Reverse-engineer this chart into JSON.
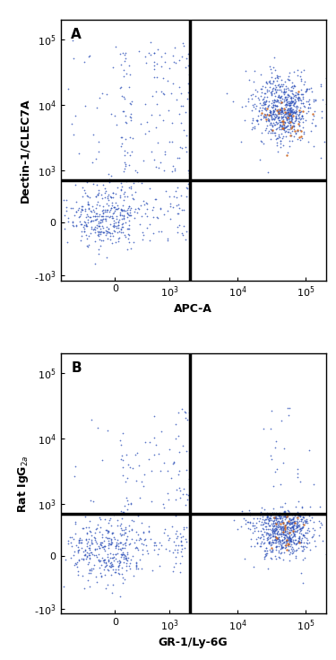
{
  "panel_A": {
    "label": "A",
    "xlabel": "APC-A",
    "ylabel": "Dectin-1/CLEC7A",
    "gate_x": 2000,
    "gate_y": 700
  },
  "panel_B": {
    "label": "B",
    "xlabel": "GR-1/Ly-6G",
    "ylabel": "Rat IgG$_{2a}$",
    "gate_x": 2000,
    "gate_y": 700
  },
  "dot_color_main": "#3355bb",
  "dot_color_hot": "#cc6622",
  "dot_size": 1.5,
  "dot_alpha": 0.8,
  "gate_color": "black",
  "gate_lw": 2.5,
  "bg_color": "white",
  "axis_color": "black",
  "tick_label_fontsize": 8,
  "axis_label_fontsize": 9,
  "panel_label_fontsize": 11,
  "fig_width": 3.75,
  "fig_height": 7.36,
  "linthresh": 300,
  "linscale": 0.25,
  "xlim": [
    -1000,
    200000
  ],
  "ylim": [
    -1200,
    200000
  ],
  "x_ticks": [
    0,
    1000,
    10000,
    100000
  ],
  "x_tick_labels": [
    "0",
    "10$^3$",
    "10$^4$",
    "10$^5$"
  ],
  "y_ticks": [
    -1000,
    0,
    1000,
    10000,
    100000
  ],
  "y_tick_labels": [
    "-10$^3$",
    "0",
    "10$^3$",
    "10$^4$",
    "10$^5$"
  ]
}
